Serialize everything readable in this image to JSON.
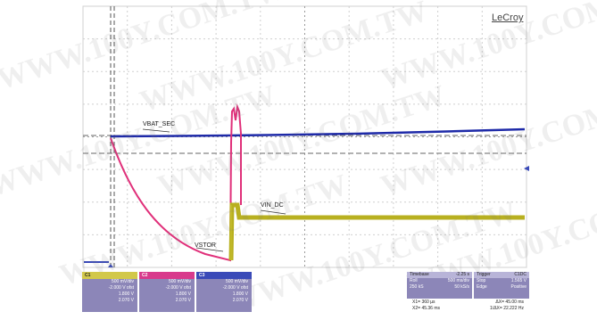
{
  "brand": "LeCroy",
  "traces": {
    "vbat_label": "VBAT_SEC",
    "vin_label": "VIN_DC",
    "vstor_label": "VSTOR"
  },
  "colors": {
    "vbat": "#1e2aa8",
    "vstor": "#e0307a",
    "vin": "#b8b020",
    "grid": "#bdbdbd",
    "panel_bg": "#8c86b8"
  },
  "channels": [
    {
      "name": "C1",
      "volts_div": "500 mV/div",
      "offset": "-2.000 V ofst",
      "rows": [
        "1.800 V",
        "2.070 V"
      ]
    },
    {
      "name": "C2",
      "volts_div": "500 mV/div",
      "offset": "-2.000 V ofst",
      "rows": [
        "1.800 V",
        "2.070 V"
      ]
    },
    {
      "name": "C3",
      "volts_div": "500 mV/div",
      "offset": "-2.000 V ofst",
      "rows": [
        "1.800 V",
        "2.070 V"
      ]
    }
  ],
  "timebase": {
    "label": "Timebase",
    "value": "-2.25 s",
    "mode": "Roll",
    "per_div": "500 ms/div",
    "samples": "250 kS",
    "rate": "50 kS/s"
  },
  "trigger": {
    "label": "Trigger",
    "channel": "C1DC",
    "mode": "Stop",
    "level": "1.565 V",
    "type": "Edge",
    "slope": "Positive"
  },
  "measurements": {
    "x1": "X1=",
    "x1_val": "360 µs",
    "dx": "ΔX=",
    "dx_val": "45.00 ms",
    "x2": "X2=",
    "x2_val": "45.36 ms",
    "inv_dx": "1/ΔX=",
    "inv_dx_val": "22.222 Hz"
  },
  "watermark": "WWW.100Y.COM.TW"
}
